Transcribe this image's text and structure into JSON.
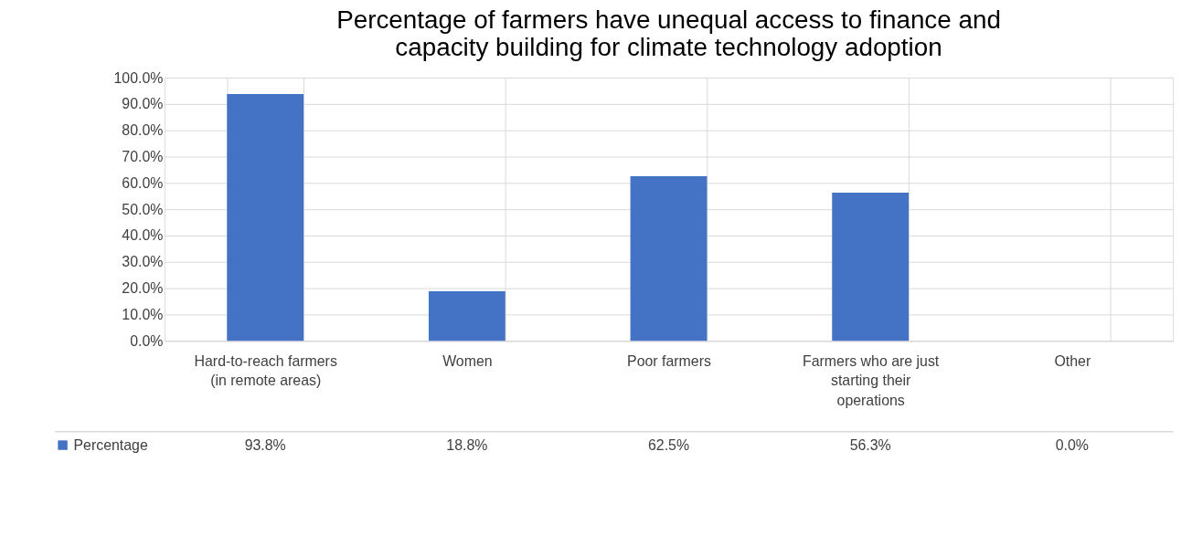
{
  "chart_data": {
    "type": "bar",
    "title": "Percentage of farmers have unequal access to finance and capacity building for climate technology adoption",
    "categories": [
      "Hard-to-reach farmers (in remote areas)",
      "Women",
      "Poor farmers",
      "Farmers who are just starting their operations",
      "Other"
    ],
    "series": [
      {
        "name": "Percentage",
        "color": "#4472c4",
        "values": [
          93.8,
          18.8,
          62.5,
          56.3,
          0.0
        ],
        "value_labels": [
          "93.8%",
          "18.8%",
          "62.5%",
          "56.3%",
          "0.0%"
        ]
      }
    ],
    "ylim": [
      0,
      100
    ],
    "yticks": [
      {
        "value": 0,
        "label": "0.0%"
      },
      {
        "value": 10,
        "label": "10.0%"
      },
      {
        "value": 20,
        "label": "20.0%"
      },
      {
        "value": 30,
        "label": "30.0%"
      },
      {
        "value": 40,
        "label": "40.0%"
      },
      {
        "value": 50,
        "label": "50.0%"
      },
      {
        "value": 60,
        "label": "60.0%"
      },
      {
        "value": 70,
        "label": "70.0%"
      },
      {
        "value": 80,
        "label": "80.0%"
      },
      {
        "value": 90,
        "label": "90.0%"
      },
      {
        "value": 100,
        "label": "100.0%"
      }
    ],
    "grid": "y",
    "legend": "bottom"
  }
}
